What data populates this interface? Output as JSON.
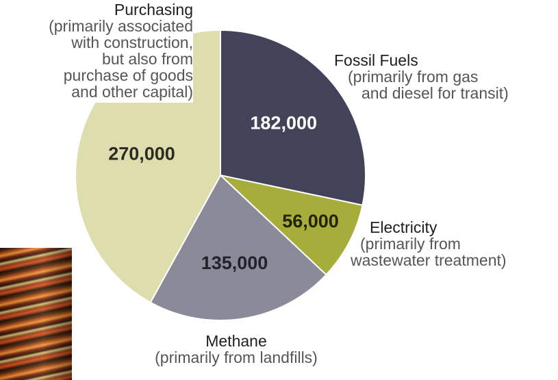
{
  "chart_data": {
    "type": "pie",
    "slices": [
      {
        "label": "Fossil Fuels",
        "note": "(primarily from gas and diesel for transit)",
        "value": 182000,
        "value_label": "182,000",
        "color": "#424358",
        "text_color": "#ffffff"
      },
      {
        "label": "Electricity",
        "note": "(primarily from wastewater treatment)",
        "value": 56000,
        "value_label": "56,000",
        "color": "#a6ad3a",
        "text_color": "#22240a"
      },
      {
        "label": "Methane",
        "note": "(primarily from landfills)",
        "value": 135000,
        "value_label": "135,000",
        "color": "#8b8a99",
        "text_color": "#22222a"
      },
      {
        "label": "Purchasing",
        "note": "(primarily associated with construction, but also from purchase of goods and other capital)",
        "value": 270000,
        "value_label": "270,000",
        "color": "#deddae",
        "text_color": "#2b2b22"
      }
    ],
    "start_angle_deg": 0,
    "direction": "clockwise",
    "legend": "none"
  },
  "labels": {
    "purchasing": {
      "title": "Purchasing",
      "lines": [
        "(primarily associated",
        "with construction,",
        "but also from",
        "purchase of goods",
        "and other capital)"
      ]
    },
    "fossil": {
      "title": "Fossil Fuels",
      "lines": [
        "(primarily from gas",
        "and diesel for transit)"
      ]
    },
    "electricity": {
      "title": "Electricity",
      "lines": [
        "(primarily from",
        "wastewater treatment)"
      ]
    },
    "methane": {
      "title": "Methane",
      "lines": [
        "(primarily from landfills)"
      ]
    }
  },
  "decor": {
    "photo_icon": "streaked-lights-photo"
  }
}
